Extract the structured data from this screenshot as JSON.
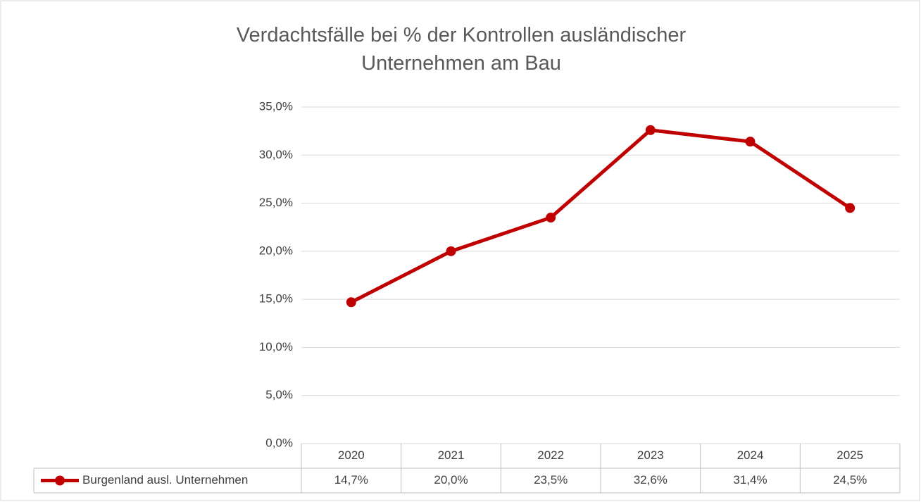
{
  "chart_data": {
    "type": "line",
    "title": "Verdachtsfälle bei % der Kontrollen ausländischer Unternehmen am Bau",
    "categories": [
      "2020",
      "2021",
      "2022",
      "2023",
      "2024",
      "2025"
    ],
    "series": [
      {
        "name": "Burgenland ausl. Unternehmen",
        "color": "#c00000",
        "values": [
          14.7,
          20.0,
          23.5,
          32.6,
          31.4,
          24.5
        ],
        "value_labels": [
          "14,7%",
          "20,0%",
          "23,5%",
          "32,6%",
          "31,4%",
          "24,5%"
        ]
      }
    ],
    "ylim": [
      0,
      35
    ],
    "yticks": [
      {
        "value": 0,
        "label": "0,0%"
      },
      {
        "value": 5,
        "label": "5,0%"
      },
      {
        "value": 10,
        "label": "10,0%"
      },
      {
        "value": 15,
        "label": "15,0%"
      },
      {
        "value": 20,
        "label": "20,0%"
      },
      {
        "value": 25,
        "label": "25,0%"
      },
      {
        "value": 30,
        "label": "30,0%"
      },
      {
        "value": 35,
        "label": "35,0%"
      }
    ],
    "grid": true
  }
}
